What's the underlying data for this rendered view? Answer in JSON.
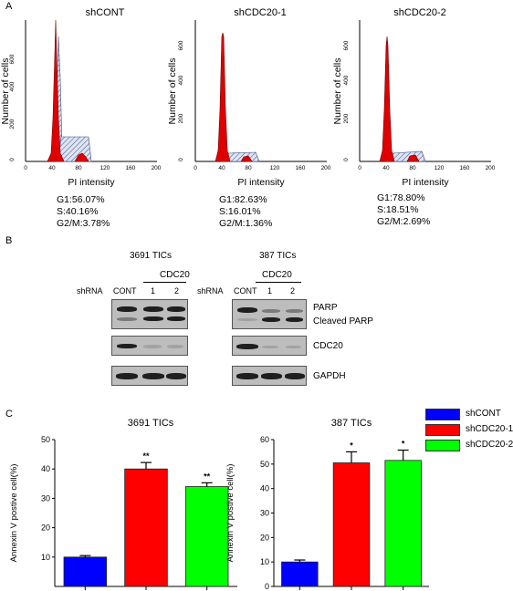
{
  "panel_labels": {
    "a": "A",
    "b": "B",
    "c": "C"
  },
  "flow": {
    "y_label": "Number of cells",
    "x_label": "PI intensity",
    "x_ticks": [
      "0",
      "40",
      "80",
      "120",
      "160",
      "200"
    ],
    "y_ticks": [
      "0",
      "200",
      "400",
      "600"
    ],
    "histograms": [
      {
        "title": "shCONT",
        "stats": [
          "G1:56.07%",
          "S:40.16%",
          "G2/M:3.78%"
        ]
      },
      {
        "title": "shCDC20-1",
        "stats": [
          "G1:82.63%",
          "S:16.01%",
          "G2/M:1.36%"
        ]
      },
      {
        "title": "shCDC20-2",
        "stats": [
          "G1:78.80%",
          "S:18.51%",
          "G2/M:2.69%"
        ]
      }
    ]
  },
  "western": {
    "blots": [
      {
        "title": "3691 TICs",
        "group": "CDC20",
        "shrna": "shRNA",
        "lanes": [
          "CONT",
          "1",
          "2"
        ]
      },
      {
        "title": "387 TICs",
        "group": "CDC20",
        "shrna": "shRNA",
        "lanes": [
          "CONT",
          "1",
          "2"
        ]
      }
    ],
    "row_labels": {
      "parp": "PARP",
      "cleaved": "Cleaved PARP",
      "cdc20": "CDC20",
      "gapdh": "GAPDH"
    }
  },
  "legend": [
    {
      "label": "shCONT",
      "color": "#0000ff"
    },
    {
      "label": "shCDC20-1",
      "color": "#ff0000"
    },
    {
      "label": "shCDC20-2",
      "color": "#00ff00"
    }
  ],
  "chart_data": [
    {
      "type": "bar",
      "title": "3691 TICs",
      "ylabel": "Annexin V postive cell(%)",
      "categories": [
        "shCONT",
        "shCDC20-1",
        "shCDC20-2"
      ],
      "values": [
        10,
        40,
        34
      ],
      "errors": [
        0.5,
        2.2,
        1.3
      ],
      "significance": [
        "",
        "**",
        "**"
      ],
      "colors": [
        "#0000ff",
        "#ff0000",
        "#00ff00"
      ],
      "ylim": [
        0,
        50
      ],
      "yticks": [
        "10",
        "20",
        "30",
        "40",
        "50"
      ]
    },
    {
      "type": "bar",
      "title": "387 TICs",
      "ylabel": "Annexin V postive cell(%)",
      "categories": [
        "shCONT",
        "shCDC20-1",
        "shCDC20-2"
      ],
      "values": [
        10,
        50.5,
        51.5
      ],
      "errors": [
        0.8,
        4.5,
        4.2
      ],
      "significance": [
        "",
        "*",
        "*"
      ],
      "colors": [
        "#0000ff",
        "#ff0000",
        "#00ff00"
      ],
      "ylim": [
        0,
        60
      ],
      "yticks": [
        "0",
        "10",
        "20",
        "30",
        "40",
        "50",
        "60"
      ]
    }
  ]
}
